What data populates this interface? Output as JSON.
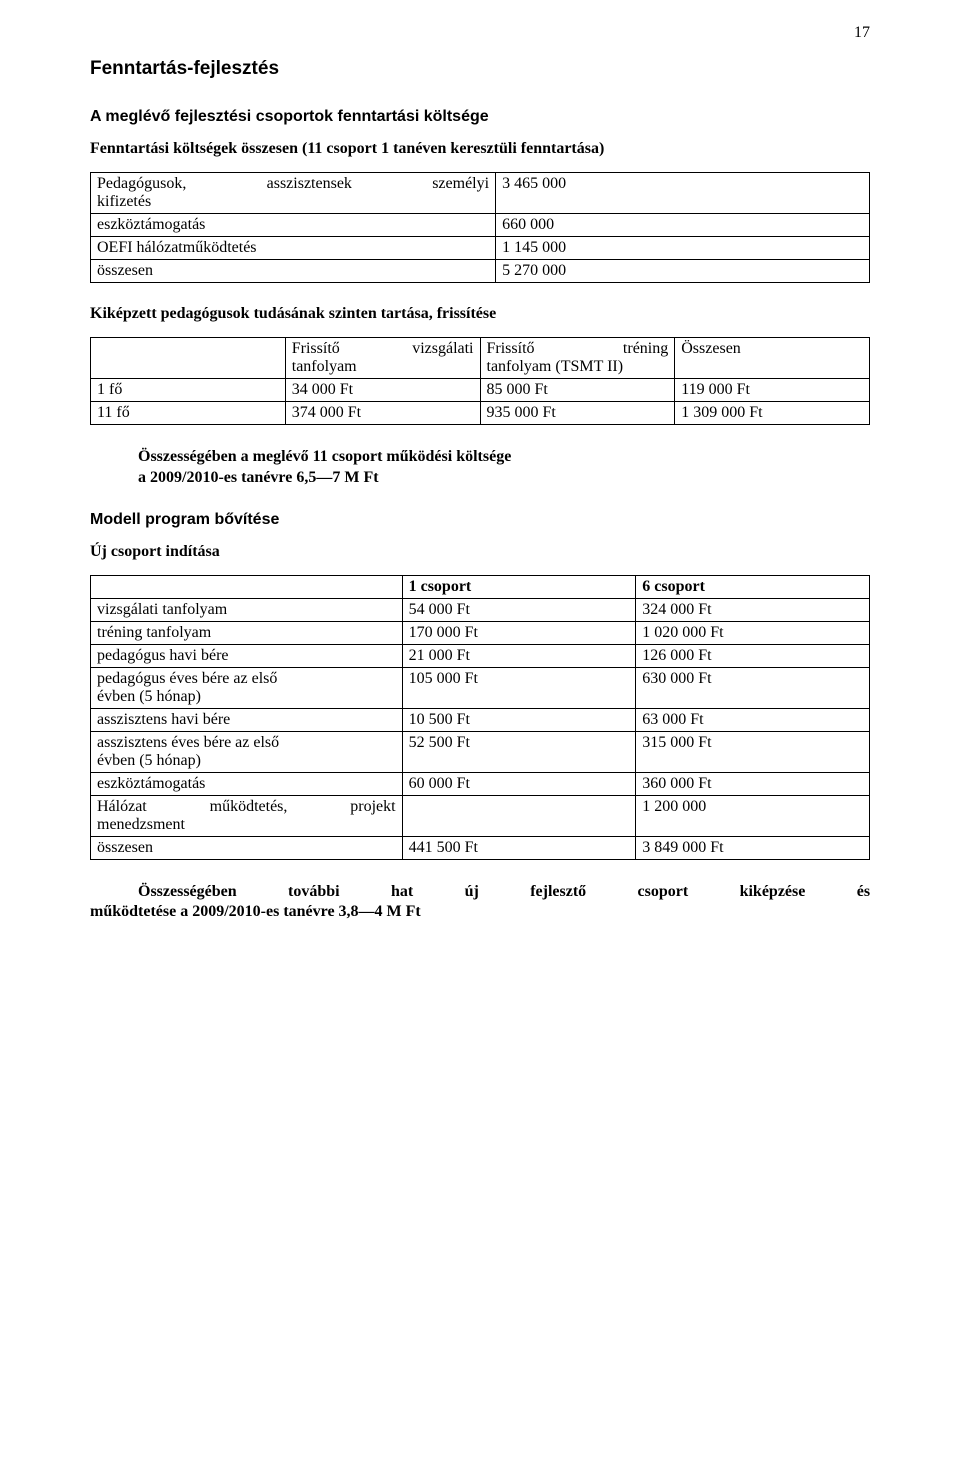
{
  "page_number": "17",
  "title_main": "Fenntartás-fejlesztés",
  "subtitle_main": "A meglévő fejlesztési csoportok fenntartási költsége",
  "subheading_1": "Fenntartási költségek összesen (11 csoport 1 tanéven keresztüli fenntartása)",
  "table1": {
    "r1c1_a": "Pedagógusok,",
    "r1c1_b": "asszisztensek",
    "r1c1_c": "személyi",
    "r1c1_line2": "kifizetés",
    "r1c2": "3 465 000",
    "r2c1": "eszköztámogatás",
    "r2c2": "660 000",
    "r3c1": "OEFI hálózatműködtetés",
    "r3c2": "1 145 000",
    "r4c1": "összesen",
    "r4c2": "5 270 000"
  },
  "subheading_2": "Kiképzett pedagógusok tudásának szinten tartása, frissítése",
  "table2": {
    "h0": "",
    "h1a": "Frissítő",
    "h1b": "vizsgálati",
    "h1_line2": "tanfolyam",
    "h2a": "Frissítő",
    "h2b": "tréning",
    "h2_line2": "tanfolyam (TSMT II)",
    "h3": "Összesen",
    "r1c1": "1 fő",
    "r1c2": "34 000 Ft",
    "r1c3": "85 000 Ft",
    "r1c4": "119 000 Ft",
    "r2c1": "11 fő",
    "r2c2": "374 000 Ft",
    "r2c3": "935 000 Ft",
    "r2c4": "1 309 000 Ft"
  },
  "summary1_line1": "Összességében a meglévő 11 csoport működési költsége",
  "summary1_line2": "a 2009/2010-es tanévre 6,5—7 M Ft",
  "heading_model": "Modell program bővítése",
  "subheading_3": "Új csoport indítása",
  "table3": {
    "h1": "",
    "h2": "1 csoport",
    "h3": "6 csoport",
    "r1c1": "vizsgálati tanfolyam",
    "r1c2": "54 000 Ft",
    "r1c3": "324 000 Ft",
    "r2c1": "tréning tanfolyam",
    "r2c2": "170 000 Ft",
    "r2c3": "1 020 000 Ft",
    "r3c1": "pedagógus havi bére",
    "r3c2": "21 000 Ft",
    "r3c3": "126 000 Ft",
    "r4c1_line1": "pedagógus éves bére az első",
    "r4c1_line2": "évben (5 hónap)",
    "r4c2": "105 000 Ft",
    "r4c3": "630 000 Ft",
    "r5c1": "asszisztens havi bére",
    "r5c2": "10 500 Ft",
    "r5c3": "63 000 Ft",
    "r6c1_line1": "asszisztens éves bére az első",
    "r6c1_line2": "évben (5 hónap)",
    "r6c2": "52 500 Ft",
    "r6c3": "315 000 Ft",
    "r7c1": "eszköztámogatás",
    "r7c2": "60 000 Ft",
    "r7c3": "360 000 Ft",
    "r8c1_a": "Hálózat",
    "r8c1_b": "működtetés,",
    "r8c1_c": "projekt",
    "r8c1_line2": "menedzsment",
    "r8c2": "",
    "r8c3": "1 200 000",
    "r9c1": "összesen",
    "r9c2": "441 500 Ft",
    "r9c3": "3 849 000 Ft"
  },
  "conclusion_a": "Összességében",
  "conclusion_b": "további",
  "conclusion_c": "hat",
  "conclusion_d": "új",
  "conclusion_e": "fejlesztő",
  "conclusion_f": "csoport",
  "conclusion_g": "kiképzése",
  "conclusion_h": "és",
  "conclusion_line2": "működtetése a 2009/2010-es tanévre 3,8—4 M Ft"
}
